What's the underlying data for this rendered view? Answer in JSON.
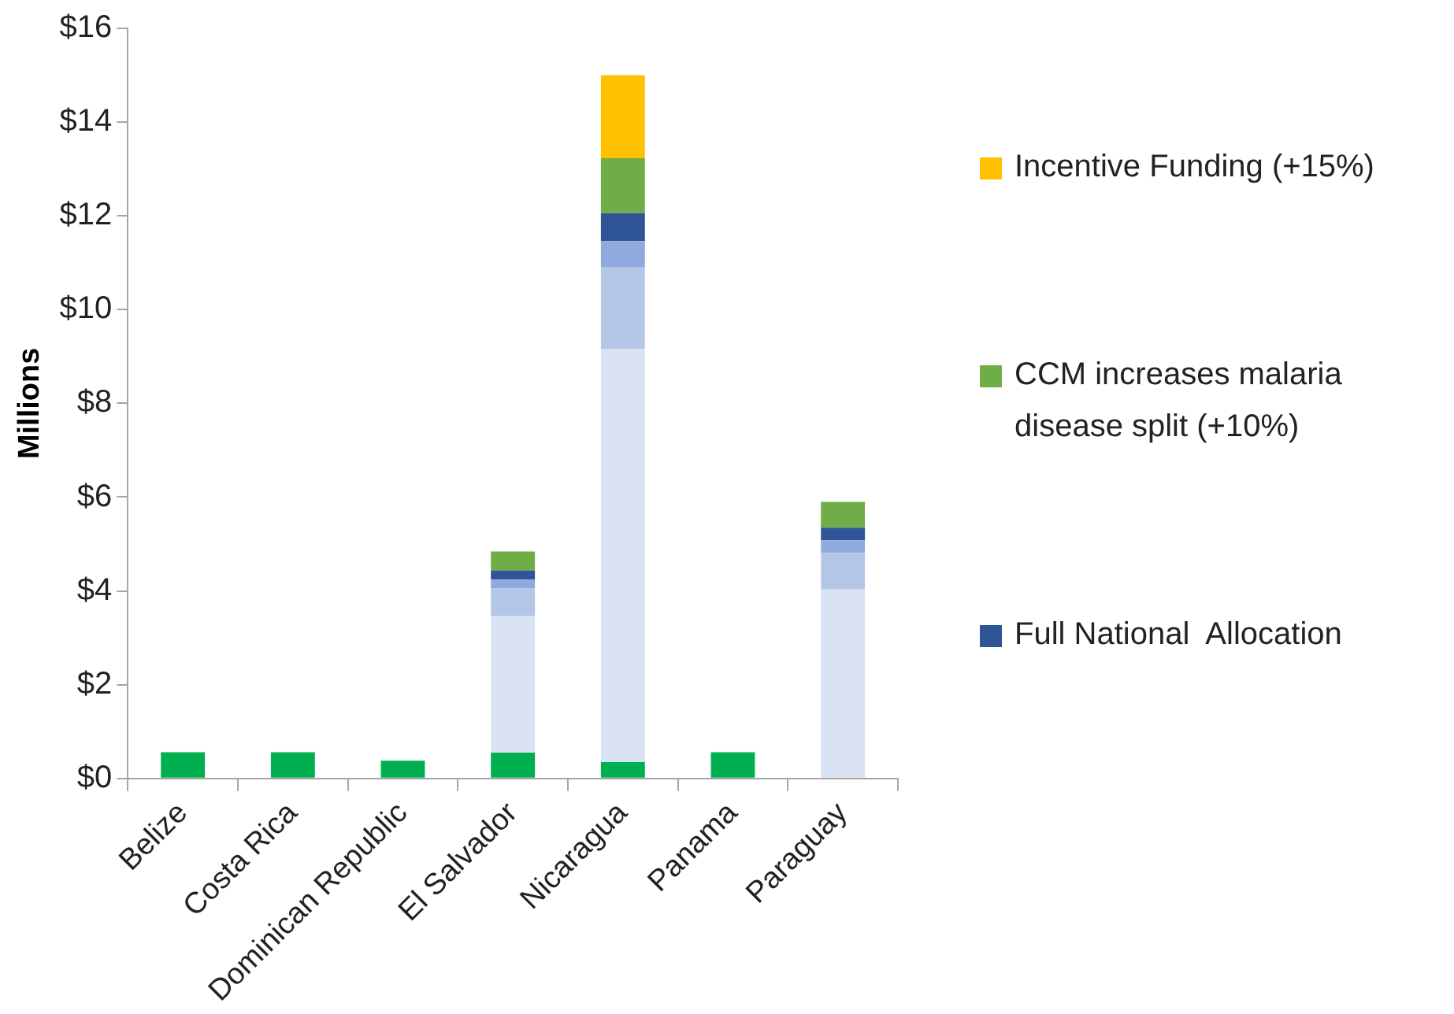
{
  "chart_data": {
    "type": "bar",
    "stacked": true,
    "ylabel": "Millions",
    "categories": [
      "Belize",
      "Costa Rica",
      "Dominican Republic",
      "El Salvador",
      "Nicaragua",
      "Panama",
      "Paraguay"
    ],
    "series": [
      {
        "color": "#00b050",
        "values": [
          0.56,
          0.56,
          0.38,
          0.55,
          0.35,
          0.56,
          null
        ]
      },
      {
        "color": "#dae3f3",
        "values": [
          null,
          null,
          null,
          2.91,
          8.81,
          null,
          4.03
        ]
      },
      {
        "color": "#b4c7e7",
        "values": [
          null,
          null,
          null,
          0.59,
          1.74,
          null,
          0.78
        ]
      },
      {
        "color": "#8faadc",
        "values": [
          null,
          null,
          null,
          0.19,
          0.56,
          null,
          0.27
        ]
      },
      {
        "name": "Full National  Allocation",
        "color": "#2f5597",
        "values": [
          null,
          null,
          null,
          0.2,
          0.6,
          null,
          0.27
        ]
      },
      {
        "name": "CCM increases malaria disease split (+10%)",
        "color": "#70ad47",
        "values": [
          null,
          null,
          null,
          0.4,
          1.17,
          null,
          0.55
        ]
      },
      {
        "name": "Incentive Funding (+15%)",
        "color": "#ffc000",
        "values": [
          null,
          null,
          null,
          null,
          1.77,
          null,
          null
        ]
      }
    ],
    "ylim": [
      0,
      16
    ],
    "yticks": [
      {
        "value": 0,
        "label": "$0"
      },
      {
        "value": 2,
        "label": "$2"
      },
      {
        "value": 4,
        "label": "$4"
      },
      {
        "value": 6,
        "label": "$6"
      },
      {
        "value": 8,
        "label": "$8"
      },
      {
        "value": 10,
        "label": "$10"
      },
      {
        "value": 12,
        "label": "$12"
      },
      {
        "value": 14,
        "label": "$14"
      },
      {
        "value": 16,
        "label": "$16"
      }
    ],
    "grid": false,
    "legend": "right"
  }
}
